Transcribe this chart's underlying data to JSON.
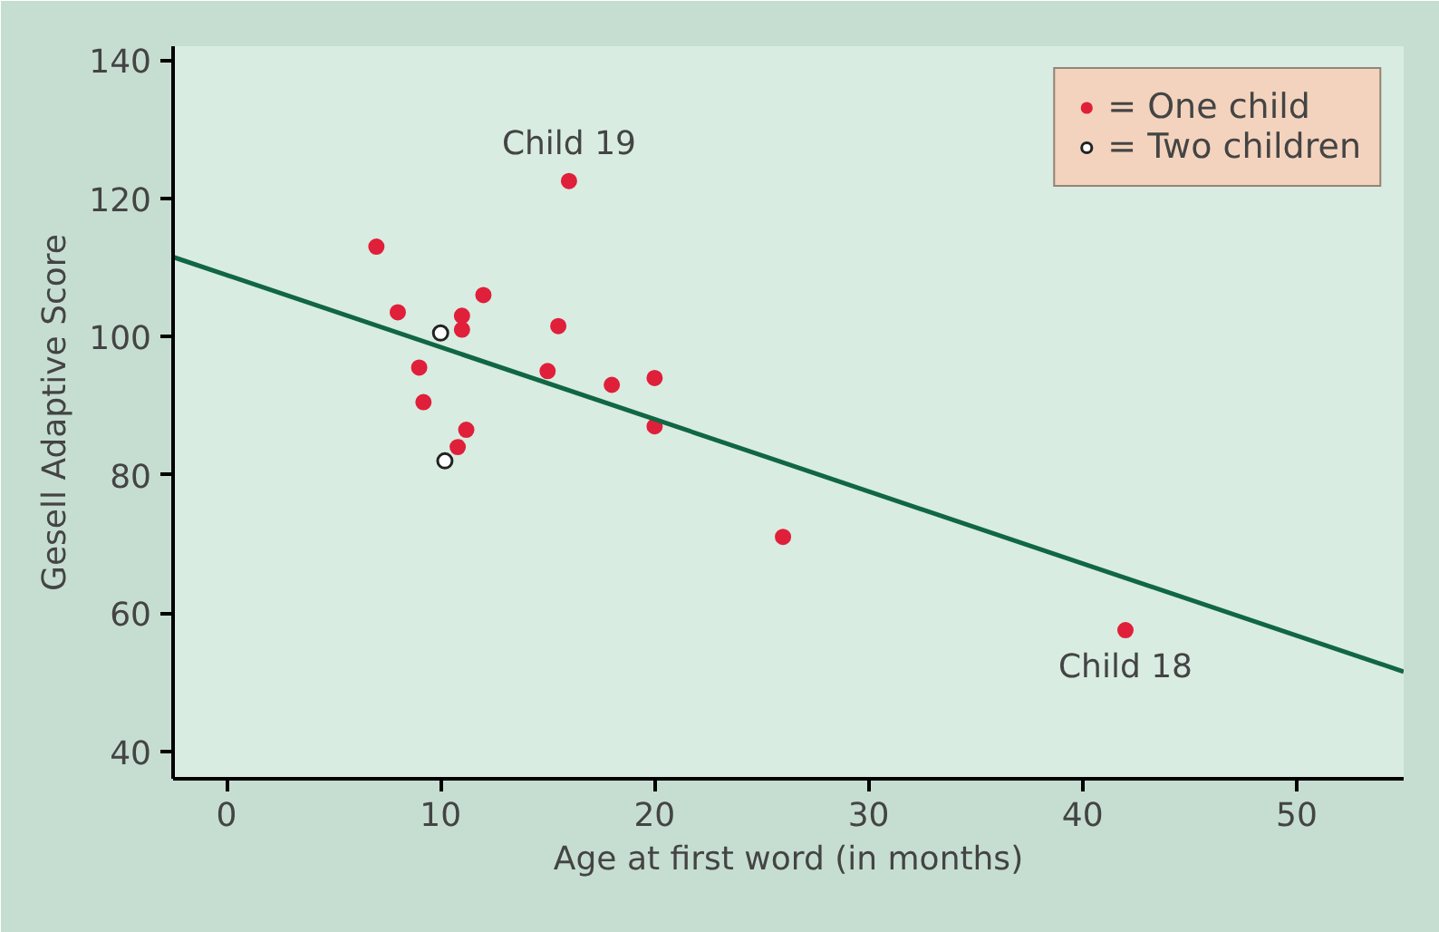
{
  "chart_data": {
    "type": "scatter",
    "xlabel": "Age at first word (in months)",
    "ylabel": "Gesell Adaptive Score",
    "xlim": [
      -2.5,
      55
    ],
    "ylim": [
      36,
      142
    ],
    "xticks": [
      0,
      10,
      20,
      30,
      40,
      50
    ],
    "yticks": [
      40,
      60,
      80,
      100,
      120,
      140
    ],
    "grid": false,
    "legend": "top right",
    "marker": "circle",
    "series": [
      {
        "name": "= One child",
        "color": "#e0203a",
        "x": [
          7,
          8,
          9,
          9.2,
          11,
          11,
          10.8,
          11.2,
          12,
          15,
          15.5,
          16,
          18,
          20,
          20,
          26,
          42
        ],
        "values": [
          113,
          103.5,
          95.5,
          90.5,
          103,
          101,
          84,
          86.5,
          106,
          95,
          101.5,
          122.5,
          93,
          94,
          87,
          71,
          57.5
        ]
      },
      {
        "name": "= Two children",
        "color": "#222222",
        "marker": "open_circle",
        "x": [
          10,
          10.2
        ],
        "values": [
          100.5,
          82
        ]
      },
      {
        "type": "line",
        "color": "#116644",
        "marker": "none",
        "x": [
          -2.5,
          55
        ],
        "values": [
          111.5,
          51.5
        ]
      }
    ],
    "annotations": [
      {
        "text": "Child 19",
        "x": 16,
        "y": 122.5
      },
      {
        "text": "Child 18",
        "x": 42,
        "y": 57.5
      }
    ]
  }
}
